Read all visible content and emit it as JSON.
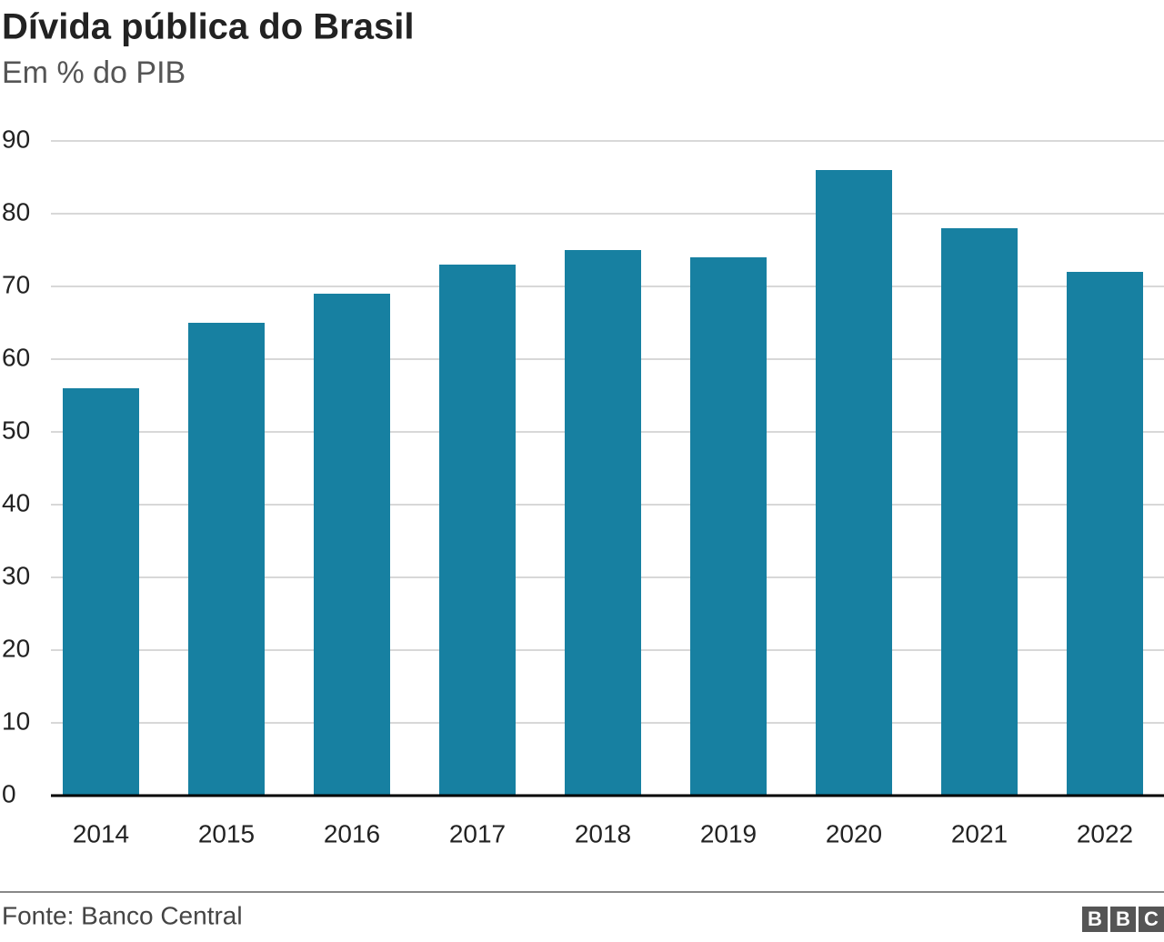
{
  "chart_data": {
    "type": "bar",
    "title": "Dívida pública do Brasil",
    "subtitle": "Em % do PIB",
    "categories": [
      "2014",
      "2015",
      "2016",
      "2017",
      "2018",
      "2019",
      "2020",
      "2021",
      "2022"
    ],
    "values": [
      56,
      65,
      69,
      73,
      75,
      74,
      86,
      78,
      72
    ],
    "color": "#1780a1",
    "ylim": [
      0,
      90
    ],
    "yticks": [
      0,
      10,
      20,
      30,
      40,
      50,
      60,
      70,
      80,
      90
    ],
    "grid": true,
    "source": "Fonte: Banco Central",
    "logo": [
      "B",
      "B",
      "C"
    ]
  }
}
